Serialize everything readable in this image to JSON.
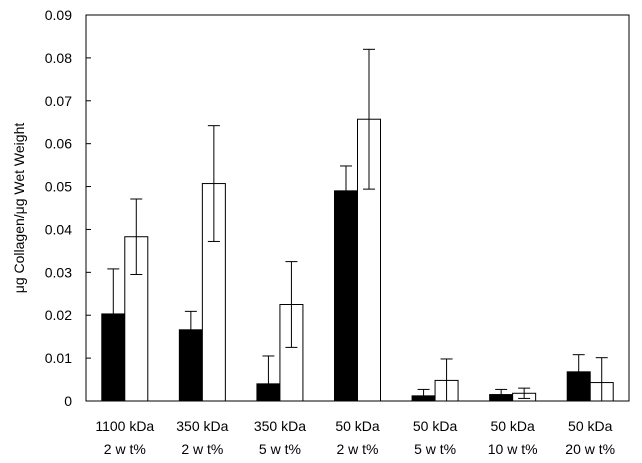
{
  "chart_data": {
    "type": "bar",
    "title": "",
    "xlabel": "",
    "ylabel": "μg Collagen/μg Wet Weight",
    "ylim": [
      0,
      0.09
    ],
    "yticks": [
      "0",
      "0.01",
      "0.02",
      "0.03",
      "0.04",
      "0.05",
      "0.06",
      "0.07",
      "0.08",
      "0.09"
    ],
    "grid": false,
    "legend": "none",
    "categories": [
      {
        "line1": "1100 kDa",
        "line2": "2 w t%"
      },
      {
        "line1": "350 kDa",
        "line2": "2 w t%"
      },
      {
        "line1": "350 kDa",
        "line2": "5 w t%"
      },
      {
        "line1": "50 kDa",
        "line2": "2 w t%"
      },
      {
        "line1": "50 kDa",
        "line2": "5 w t%"
      },
      {
        "line1": "50 kDa",
        "line2": "10 w t%"
      },
      {
        "line1": "50 kDa",
        "line2": "20 w t%"
      }
    ],
    "series": [
      {
        "fill": "#000000",
        "values": [
          0.0203,
          0.0166,
          0.004,
          0.049,
          0.0012,
          0.0015,
          0.0068
        ],
        "errors": [
          0.0105,
          0.0043,
          0.0065,
          0.0058,
          0.0015,
          0.0012,
          0.004
        ]
      },
      {
        "fill": "#ffffff",
        "values": [
          0.0383,
          0.0507,
          0.0225,
          0.0657,
          0.0048,
          0.0018,
          0.0043
        ],
        "errors": [
          0.0088,
          0.0135,
          0.01,
          0.0163,
          0.005,
          0.0012,
          0.0058
        ]
      }
    ]
  }
}
